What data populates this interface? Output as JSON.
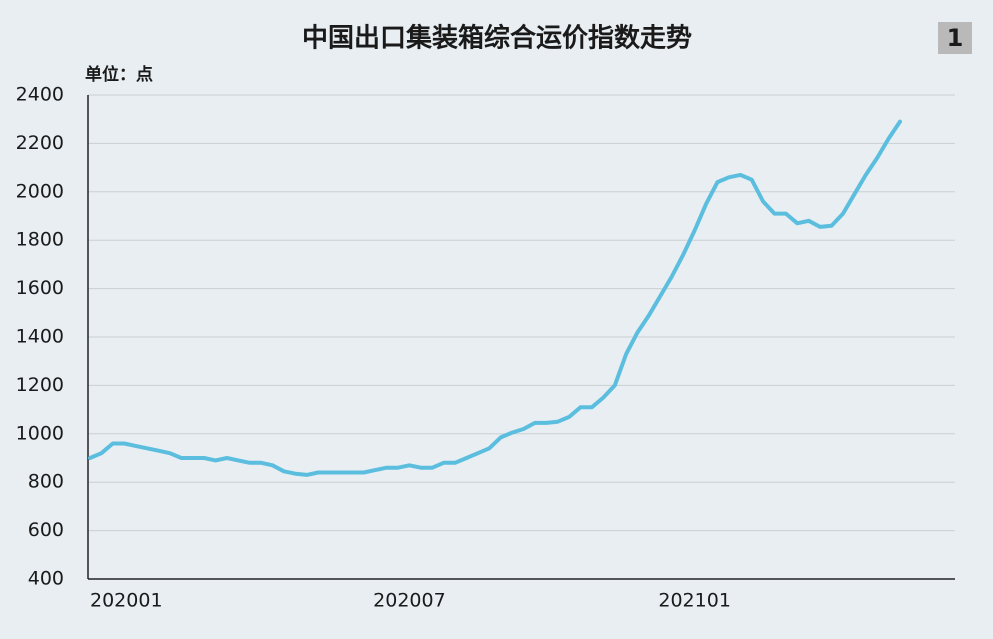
{
  "chart_data": {
    "type": "line",
    "title": "中国出口集装箱综合运价指数走势",
    "badge": "1",
    "unit_label": "单位：点",
    "categories": [
      "202001",
      null,
      null,
      null,
      null,
      null,
      null,
      null,
      null,
      null,
      null,
      null,
      null,
      null,
      null,
      null,
      null,
      null,
      null,
      null,
      null,
      null,
      null,
      null,
      null,
      null,
      null,
      null,
      "202007",
      null,
      null,
      null,
      null,
      null,
      null,
      null,
      null,
      null,
      null,
      null,
      null,
      null,
      null,
      null,
      null,
      null,
      null,
      null,
      null,
      null,
      null,
      null,
      null,
      "202101",
      null,
      null,
      null,
      null,
      null,
      null,
      null,
      null,
      null,
      null,
      null,
      null,
      null,
      null,
      null,
      null,
      null,
      null
    ],
    "series": [
      {
        "name": "中国出口集装箱综合运价指数",
        "color": "#5bbedf",
        "values": [
          900,
          920,
          960,
          960,
          950,
          940,
          930,
          920,
          900,
          900,
          900,
          890,
          900,
          890,
          880,
          880,
          870,
          845,
          835,
          830,
          840,
          840,
          840,
          840,
          840,
          850,
          860,
          860,
          870,
          860,
          860,
          880,
          880,
          900,
          920,
          940,
          985,
          1005,
          1020,
          1045,
          1045,
          1050,
          1070,
          1110,
          1110,
          1150,
          1200,
          1330,
          1420,
          1490,
          1570,
          1650,
          1740,
          1840,
          1950,
          2040,
          2060,
          2070,
          2050,
          1960,
          1910,
          1910,
          1870,
          1880,
          1855,
          1860,
          1910,
          1990,
          2070,
          2140,
          2220,
          2290
        ]
      }
    ],
    "ylim": [
      400,
      2400
    ],
    "yticks": [
      400,
      600,
      800,
      1000,
      1200,
      1400,
      1600,
      1800,
      2000,
      2200,
      2400
    ],
    "grid": true
  }
}
